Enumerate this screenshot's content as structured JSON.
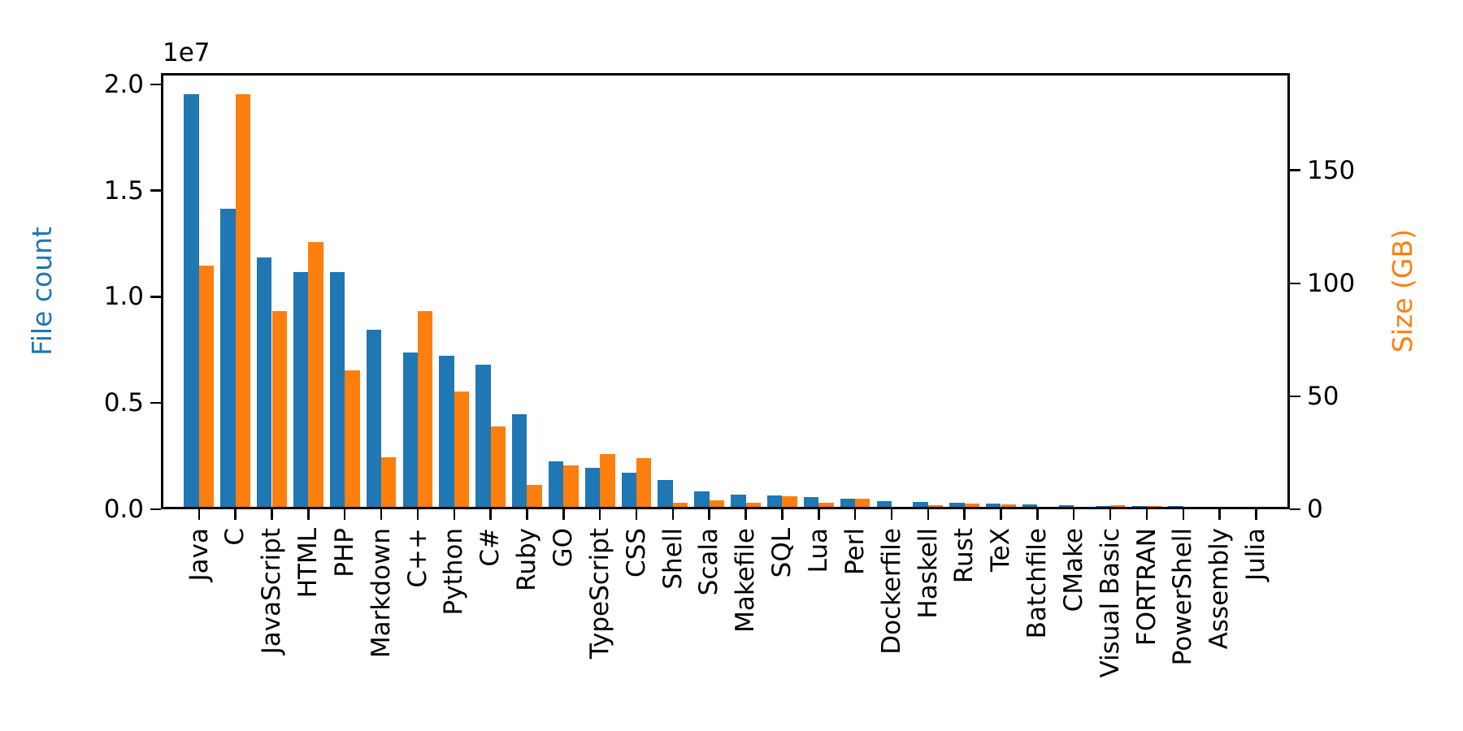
{
  "figure": {
    "title": "",
    "offset_text": "1e7",
    "left_axis": {
      "label": "File count",
      "color": "#1f77b4",
      "tick_labels": [
        "0.0",
        "0.5",
        "1.0",
        "1.5",
        "2.0"
      ],
      "tick_values": [
        0,
        5000000,
        10000000,
        15000000,
        20000000
      ]
    },
    "right_axis": {
      "label": "Size (GB)",
      "color": "#ff7f0e",
      "tick_labels": [
        "0",
        "50",
        "100",
        "150"
      ],
      "tick_values": [
        0,
        50,
        100,
        150
      ]
    }
  },
  "chart_data": {
    "type": "bar",
    "title": "",
    "grid": false,
    "legend": "none",
    "offset_text": "1e7",
    "categories": [
      "Java",
      "C",
      "JavaScript",
      "HTML",
      "PHP",
      "Markdown",
      "C++",
      "Python",
      "C#",
      "Ruby",
      "GO",
      "TypeScript",
      "CSS",
      "Shell",
      "Scala",
      "Makefile",
      "SQL",
      "Lua",
      "Perl",
      "Dockerfile",
      "Haskell",
      "Rust",
      "TeX",
      "Batchfile",
      "CMake",
      "Visual Basic",
      "FORTRAN",
      "PowerShell",
      "Assembly",
      "Julia"
    ],
    "series": [
      {
        "name": "File count",
        "axis": "left",
        "color": "#1f77b4",
        "values": [
          19548190,
          14143113,
          11839883,
          11178557,
          11177610,
          8464626,
          7380520,
          7226626,
          6811652,
          4473331,
          2265436,
          1940406,
          1734406,
          1385648,
          835755,
          679430,
          656671,
          578554,
          497949,
          366505,
          340623,
          322431,
          251015,
          236945,
          175282,
          155652,
          142038,
          136846,
          82905,
          58317
        ]
      },
      {
        "name": "Size (GB)",
        "axis": "right",
        "color": "#ff7f0e",
        "values": [
          107.7,
          183.83,
          87.82,
          118.12,
          61.41,
          23.09,
          87.73,
          52.03,
          36.83,
          10.95,
          19.28,
          24.59,
          22.67,
          3.01,
          3.87,
          2.92,
          5.67,
          2.81,
          4.7,
          0.71,
          1.85,
          2.68,
          2.15,
          0.7,
          0.54,
          1.91,
          1.62,
          0.69,
          0.78,
          0.29
        ]
      }
    ],
    "xlabel": "",
    "ylabel_left": "File count",
    "ylabel_right": "Size (GB)",
    "ylim_left": [
      0,
      20525600
    ],
    "ylim_right": [
      0,
      193.02
    ]
  }
}
